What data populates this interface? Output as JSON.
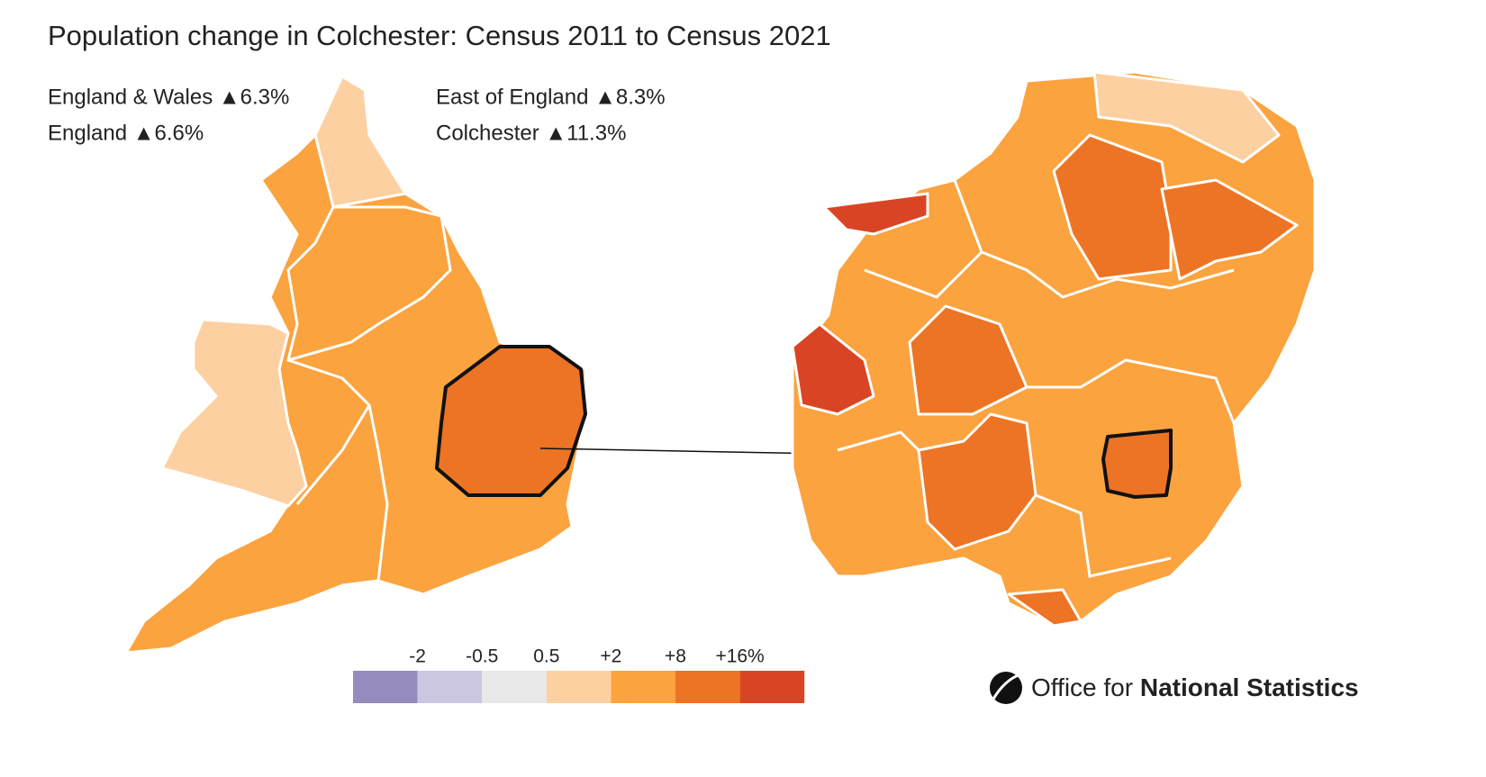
{
  "title": "Population change in Colchester: Census 2011 to Census 2021",
  "stats": [
    "England & Wales ▲6.3%",
    "England ▲6.6%",
    "East of England ▲8.3%",
    "Colchester ▲11.3%"
  ],
  "legend": {
    "colors": [
      "#958bbd",
      "#cbc7e0",
      "#e8e8e8",
      "#fdd0a2",
      "#fba33f",
      "#ed7424",
      "#d94524"
    ],
    "breaks": [
      -2,
      -0.5,
      0.5,
      {
        "value": 2,
        "label": "+2"
      },
      {
        "value": 8,
        "label": "+8"
      },
      {
        "value": 16,
        "label": "+16%"
      }
    ]
  },
  "logo": {
    "regular": "Office for",
    "bold": "National Statistics"
  }
}
